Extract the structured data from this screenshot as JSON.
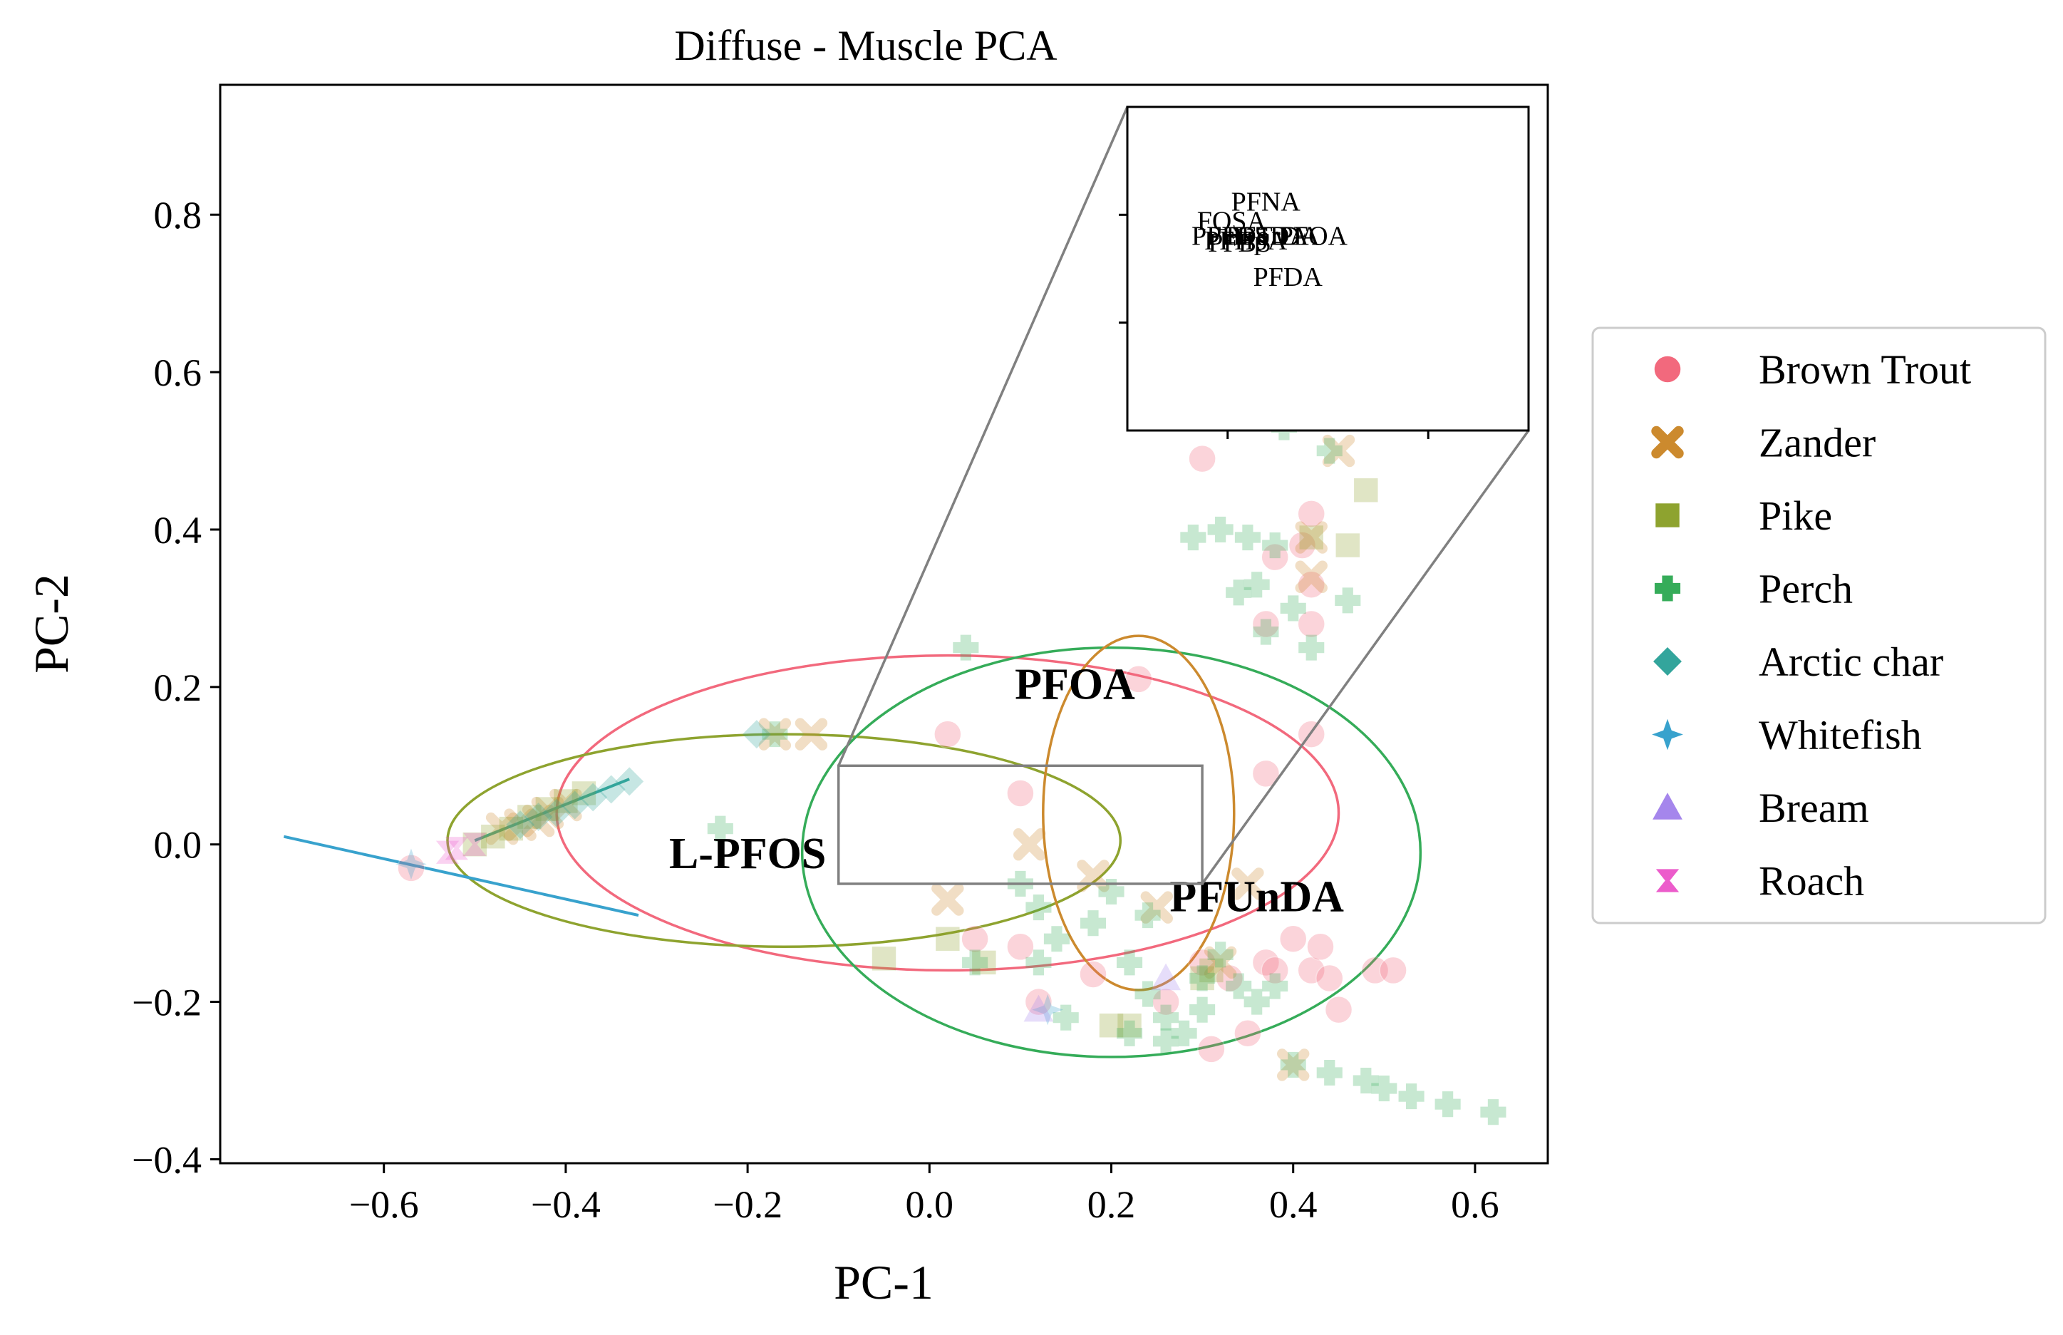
{
  "chart_data": {
    "type": "scatter",
    "title": "Diffuse - Muscle PCA",
    "xlabel": "PC-1",
    "ylabel": "PC-2",
    "xlim": [
      -0.78,
      0.68
    ],
    "ylim": [
      -0.405,
      0.965
    ],
    "xticks": [
      -0.6,
      -0.4,
      -0.2,
      0.0,
      0.2,
      0.4,
      0.6
    ],
    "xtick_labels": [
      "−0.6",
      "−0.4",
      "−0.2",
      "0.0",
      "0.2",
      "0.4",
      "0.6"
    ],
    "yticks": [
      -0.4,
      -0.2,
      0.0,
      0.2,
      0.4,
      0.6,
      0.8
    ],
    "ytick_labels": [
      "−0.4",
      "−0.2",
      "0.0",
      "0.2",
      "0.4",
      "0.6",
      "0.8"
    ],
    "grid": false,
    "legend_position": "outside-right",
    "series": [
      {
        "name": "Brown Trout",
        "marker": "circle",
        "color": "#f2697d",
        "points": [
          [
            -0.57,
            -0.03
          ],
          [
            0.02,
            0.14
          ],
          [
            0.1,
            0.065
          ],
          [
            0.23,
            0.21
          ],
          [
            0.3,
            0.49
          ],
          [
            0.38,
            0.365
          ],
          [
            0.42,
            0.42
          ],
          [
            0.41,
            0.38
          ],
          [
            0.42,
            0.28
          ],
          [
            0.42,
            0.33
          ],
          [
            0.37,
            0.28
          ],
          [
            0.37,
            0.09
          ],
          [
            0.42,
            0.14
          ],
          [
            0.05,
            -0.12
          ],
          [
            0.1,
            -0.13
          ],
          [
            0.18,
            -0.165
          ],
          [
            0.26,
            -0.2
          ],
          [
            0.3,
            -0.15
          ],
          [
            0.33,
            -0.17
          ],
          [
            0.37,
            -0.15
          ],
          [
            0.38,
            -0.16
          ],
          [
            0.4,
            -0.12
          ],
          [
            0.42,
            -0.16
          ],
          [
            0.44,
            -0.17
          ],
          [
            0.45,
            -0.21
          ],
          [
            0.49,
            -0.16
          ],
          [
            0.51,
            -0.16
          ],
          [
            0.43,
            -0.13
          ],
          [
            0.31,
            -0.26
          ],
          [
            0.35,
            -0.24
          ],
          [
            0.12,
            -0.2
          ]
        ]
      },
      {
        "name": "Zander",
        "marker": "x",
        "color": "#cc8a2e",
        "points": [
          [
            -0.43,
            0.03
          ],
          [
            -0.45,
            0.025
          ],
          [
            -0.47,
            0.02
          ],
          [
            -0.42,
            0.04
          ],
          [
            -0.4,
            0.05
          ],
          [
            -0.17,
            0.14
          ],
          [
            -0.13,
            0.14
          ],
          [
            0.02,
            -0.07
          ],
          [
            0.11,
            0.0
          ],
          [
            0.18,
            -0.04
          ],
          [
            0.25,
            -0.08
          ],
          [
            0.35,
            -0.05
          ],
          [
            0.32,
            -0.15
          ],
          [
            0.42,
            0.39
          ],
          [
            0.45,
            0.5
          ],
          [
            0.42,
            0.34
          ],
          [
            0.4,
            -0.28
          ]
        ]
      },
      {
        "name": "Pike",
        "marker": "square",
        "color": "#8ea32f",
        "points": [
          [
            -0.5,
            0.0
          ],
          [
            -0.48,
            0.01
          ],
          [
            -0.46,
            0.02
          ],
          [
            -0.44,
            0.035
          ],
          [
            -0.42,
            0.045
          ],
          [
            -0.4,
            0.055
          ],
          [
            -0.38,
            0.065
          ],
          [
            -0.05,
            -0.145
          ],
          [
            0.02,
            -0.12
          ],
          [
            0.06,
            -0.15
          ],
          [
            0.2,
            -0.23
          ],
          [
            0.22,
            -0.23
          ],
          [
            0.3,
            -0.17
          ],
          [
            0.42,
            0.39
          ],
          [
            0.48,
            0.45
          ],
          [
            0.46,
            0.38
          ],
          [
            0.31,
            -0.16
          ]
        ]
      },
      {
        "name": "Perch",
        "marker": "plus",
        "color": "#35ac59",
        "points": [
          [
            -0.23,
            0.02
          ],
          [
            0.04,
            0.25
          ],
          [
            -0.17,
            0.14
          ],
          [
            0.1,
            -0.05
          ],
          [
            0.12,
            -0.08
          ],
          [
            0.14,
            -0.12
          ],
          [
            0.12,
            -0.15
          ],
          [
            0.18,
            -0.1
          ],
          [
            0.2,
            -0.06
          ],
          [
            0.22,
            -0.15
          ],
          [
            0.24,
            -0.19
          ],
          [
            0.26,
            -0.22
          ],
          [
            0.28,
            -0.24
          ],
          [
            0.3,
            -0.17
          ],
          [
            0.32,
            -0.14
          ],
          [
            0.34,
            -0.18
          ],
          [
            0.36,
            -0.2
          ],
          [
            0.38,
            -0.18
          ],
          [
            0.3,
            -0.21
          ],
          [
            0.24,
            -0.09
          ],
          [
            0.05,
            -0.15
          ],
          [
            0.15,
            -0.22
          ],
          [
            0.29,
            0.39
          ],
          [
            0.32,
            0.4
          ],
          [
            0.35,
            0.39
          ],
          [
            0.38,
            0.38
          ],
          [
            0.36,
            0.33
          ],
          [
            0.34,
            0.32
          ],
          [
            0.37,
            0.27
          ],
          [
            0.4,
            0.3
          ],
          [
            0.42,
            0.25
          ],
          [
            0.46,
            0.31
          ],
          [
            0.44,
            0.5
          ],
          [
            0.39,
            0.53
          ],
          [
            0.4,
            -0.28
          ],
          [
            0.44,
            -0.29
          ],
          [
            0.48,
            -0.3
          ],
          [
            0.5,
            -0.31
          ],
          [
            0.53,
            -0.32
          ],
          [
            0.57,
            -0.33
          ],
          [
            0.62,
            -0.34
          ],
          [
            0.26,
            -0.25
          ],
          [
            0.22,
            -0.24
          ]
        ]
      },
      {
        "name": "Arctic char",
        "marker": "diamond",
        "color": "#33a59c",
        "points": [
          [
            -0.33,
            0.08
          ],
          [
            -0.35,
            0.07
          ],
          [
            -0.37,
            0.06
          ],
          [
            -0.39,
            0.05
          ],
          [
            -0.41,
            0.04
          ],
          [
            -0.43,
            0.035
          ],
          [
            -0.45,
            0.025
          ],
          [
            -0.19,
            0.14
          ]
        ]
      },
      {
        "name": "Whitefish",
        "marker": "star4",
        "color": "#38a2cd",
        "points": [
          [
            -0.57,
            -0.025
          ],
          [
            0.13,
            -0.21
          ]
        ]
      },
      {
        "name": "Bream",
        "marker": "triangle",
        "color": "#a586ec",
        "points": [
          [
            0.12,
            -0.21
          ],
          [
            0.26,
            -0.17
          ]
        ]
      },
      {
        "name": "Roach",
        "marker": "hourglass",
        "color": "#ec5ccb",
        "points": [
          [
            -0.52,
            -0.005
          ],
          [
            -0.5,
            0.0
          ],
          [
            -0.53,
            -0.01
          ]
        ]
      }
    ],
    "ellipses": [
      {
        "series": "Brown Trout",
        "color": "#f2697d",
        "cx": 0.02,
        "cy": 0.04,
        "rx": 0.43,
        "ry": 0.2
      },
      {
        "series": "Pike",
        "color": "#8ea32f",
        "cx": -0.16,
        "cy": 0.005,
        "rx": 0.37,
        "ry": 0.135
      },
      {
        "series": "Perch",
        "color": "#35ac59",
        "cx": 0.2,
        "cy": -0.01,
        "rx": 0.34,
        "ry": 0.26
      },
      {
        "series": "Zander",
        "color": "#cc8a2e",
        "cx": 0.23,
        "cy": 0.04,
        "rx": 0.105,
        "ry": 0.225
      }
    ],
    "trend_lines": [
      {
        "series": "Whitefish",
        "color": "#38a2cd",
        "points": [
          [
            -0.71,
            0.01
          ],
          [
            -0.32,
            -0.09
          ]
        ]
      },
      {
        "series": "Arctic char",
        "color": "#33a59c",
        "points": [
          [
            -0.5,
            0.005
          ],
          [
            -0.33,
            0.083
          ]
        ]
      }
    ],
    "annotations": [
      {
        "text": "PFOA",
        "x": 0.16,
        "y": 0.185
      },
      {
        "text": "L-PFOS",
        "x": -0.2,
        "y": -0.03
      },
      {
        "text": "PFUnDA",
        "x": 0.36,
        "y": -0.085
      }
    ],
    "zoom_box": {
      "x0": -0.1,
      "x1": 0.3,
      "y0": -0.05,
      "y1": 0.1
    },
    "inset": {
      "xlim": [
        -0.1,
        0.3
      ],
      "ylim": [
        -0.05,
        0.1
      ],
      "labels": [
        {
          "text": "PFNA",
          "x": 0.038,
          "y": 0.052
        },
        {
          "text": "FOSA",
          "x": 0.004,
          "y": 0.043
        },
        {
          "text": "PFOA",
          "x": 0.085,
          "y": 0.036
        },
        {
          "text": "PFHxS",
          "x": 0.003,
          "y": 0.036
        },
        {
          "text": "PFHpA",
          "x": 0.018,
          "y": 0.034
        },
        {
          "text": "PFDoDA",
          "x": 0.03,
          "y": 0.036
        },
        {
          "text": "PFTrDA",
          "x": 0.045,
          "y": 0.036
        },
        {
          "text": "PFBS",
          "x": 0.012,
          "y": 0.033
        },
        {
          "text": "PFDA",
          "x": 0.06,
          "y": 0.017
        }
      ]
    }
  }
}
